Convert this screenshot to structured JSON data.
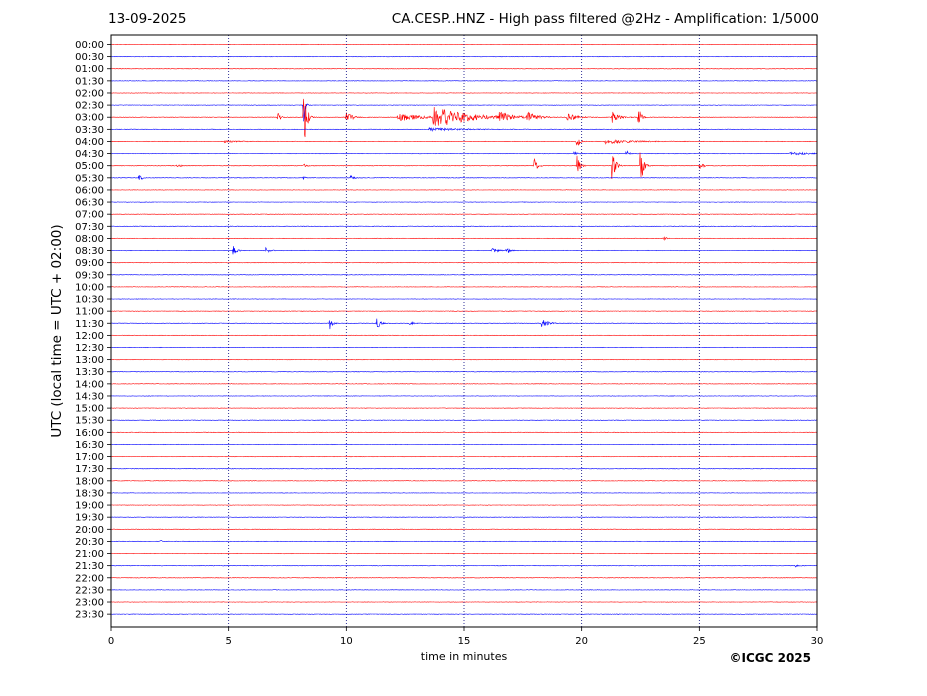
{
  "header": {
    "date": "13-09-2025",
    "title": "CA.CESP..HNZ - High pass filtered @2Hz - Amplification: 1/5000"
  },
  "credit": "©ICGC 2025",
  "colors": {
    "trace_a": "#ff0000",
    "trace_b": "#0000ff",
    "grid": "#000080"
  },
  "chart_data": {
    "type": "line",
    "title": "CA.CESP..HNZ - High pass filtered @2Hz - Amplification: 1/5000",
    "xlabel": "time in minutes",
    "ylabel": "UTC (local time = UTC + 02:00)",
    "xlim": [
      0,
      30
    ],
    "x_ticks": [
      0,
      5,
      10,
      15,
      20,
      25,
      30
    ],
    "vertical_gridlines": [
      5,
      10,
      15,
      20,
      25
    ],
    "rows": [
      "00:00",
      "00:30",
      "01:00",
      "01:30",
      "02:00",
      "02:30",
      "03:00",
      "03:30",
      "04:00",
      "04:30",
      "05:00",
      "05:30",
      "06:00",
      "06:30",
      "07:00",
      "07:30",
      "08:00",
      "08:30",
      "09:00",
      "09:30",
      "10:00",
      "10:30",
      "11:00",
      "11:30",
      "12:00",
      "12:30",
      "13:00",
      "13:30",
      "14:00",
      "14:30",
      "15:00",
      "15:30",
      "16:00",
      "16:30",
      "17:00",
      "17:30",
      "18:00",
      "18:30",
      "19:00",
      "19:30",
      "20:00",
      "20:30",
      "21:00",
      "21:30",
      "22:00",
      "22:30",
      "23:00",
      "23:30"
    ],
    "series": [
      {
        "color": "red",
        "rows": "even (00:00, 01:00, ...)"
      },
      {
        "color": "blue",
        "rows": "odd (00:30, 01:30, ...)"
      }
    ],
    "events": [
      {
        "row": "02:30",
        "t": 8.2,
        "amp": 5.0,
        "dur": 0.05
      },
      {
        "row": "03:00",
        "t": 8.2,
        "amp": 8.0,
        "dur": 0.1
      },
      {
        "row": "03:00",
        "t": 7.1,
        "amp": 1.2,
        "dur": 0.1
      },
      {
        "row": "03:00",
        "t": 10.0,
        "amp": 1.1,
        "dur": 0.2
      },
      {
        "row": "03:00",
        "t": 13.7,
        "amp": 2.2,
        "dur": 1.2
      },
      {
        "row": "03:00",
        "t": 12.2,
        "amp": 0.8,
        "dur": 0.8
      },
      {
        "row": "03:00",
        "t": 16.5,
        "amp": 0.9,
        "dur": 0.4
      },
      {
        "row": "03:00",
        "t": 17.7,
        "amp": 1.0,
        "dur": 0.3
      },
      {
        "row": "03:00",
        "t": 19.4,
        "amp": 0.8,
        "dur": 0.3
      },
      {
        "row": "03:00",
        "t": 21.3,
        "amp": 1.4,
        "dur": 0.2
      },
      {
        "row": "03:00",
        "t": 22.4,
        "amp": 2.5,
        "dur": 0.1
      },
      {
        "row": "03:30",
        "t": 13.5,
        "amp": 0.3,
        "dur": 1.2
      },
      {
        "row": "04:00",
        "t": 19.8,
        "amp": 1.6,
        "dur": 0.1
      },
      {
        "row": "04:00",
        "t": 21.0,
        "amp": 0.4,
        "dur": 1.0
      },
      {
        "row": "04:00",
        "t": 4.8,
        "amp": 0.2,
        "dur": 0.5
      },
      {
        "row": "04:30",
        "t": 19.7,
        "amp": 0.6,
        "dur": 0.1
      },
      {
        "row": "04:30",
        "t": 21.9,
        "amp": 0.6,
        "dur": 0.1
      },
      {
        "row": "04:30",
        "t": 28.8,
        "amp": 0.25,
        "dur": 1.0
      },
      {
        "row": "05:00",
        "t": 18.0,
        "amp": 1.8,
        "dur": 0.1
      },
      {
        "row": "05:00",
        "t": 19.8,
        "amp": 2.4,
        "dur": 0.1
      },
      {
        "row": "05:00",
        "t": 21.3,
        "amp": 4.5,
        "dur": 0.1
      },
      {
        "row": "05:00",
        "t": 22.5,
        "amp": 4.5,
        "dur": 0.1
      },
      {
        "row": "05:00",
        "t": 25.0,
        "amp": 1.2,
        "dur": 0.1
      },
      {
        "row": "05:00",
        "t": 2.8,
        "amp": 0.5,
        "dur": 0.1
      },
      {
        "row": "05:00",
        "t": 8.2,
        "amp": 0.4,
        "dur": 0.1
      },
      {
        "row": "05:30",
        "t": 1.2,
        "amp": 0.7,
        "dur": 0.1
      },
      {
        "row": "05:30",
        "t": 10.2,
        "amp": 0.6,
        "dur": 0.1
      },
      {
        "row": "05:30",
        "t": 8.2,
        "amp": 0.4,
        "dur": 0.05
      },
      {
        "row": "08:00",
        "t": 23.5,
        "amp": 0.3,
        "dur": 0.1
      },
      {
        "row": "08:30",
        "t": 5.2,
        "amp": 1.2,
        "dur": 0.1
      },
      {
        "row": "08:30",
        "t": 6.6,
        "amp": 1.0,
        "dur": 0.1
      },
      {
        "row": "08:30",
        "t": 16.2,
        "amp": 0.5,
        "dur": 0.2
      },
      {
        "row": "08:30",
        "t": 16.8,
        "amp": 1.1,
        "dur": 0.1
      },
      {
        "row": "11:30",
        "t": 9.3,
        "amp": 1.1,
        "dur": 0.1
      },
      {
        "row": "11:30",
        "t": 11.3,
        "amp": 1.6,
        "dur": 0.1
      },
      {
        "row": "11:30",
        "t": 12.7,
        "amp": 0.5,
        "dur": 0.1
      },
      {
        "row": "11:30",
        "t": 18.3,
        "amp": 1.0,
        "dur": 0.2
      },
      {
        "row": "20:30",
        "t": 2.1,
        "amp": 0.3,
        "dur": 0.05
      },
      {
        "row": "21:30",
        "t": 29.1,
        "amp": 0.3,
        "dur": 0.1
      }
    ]
  }
}
